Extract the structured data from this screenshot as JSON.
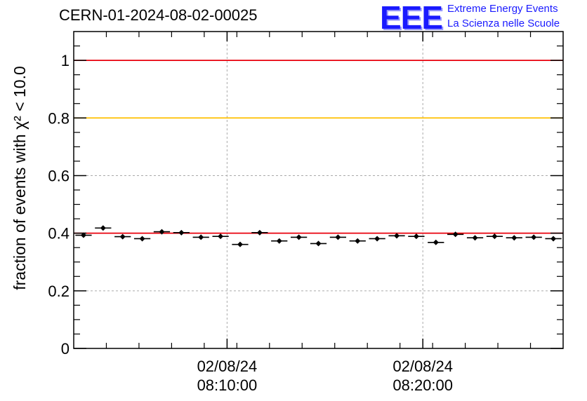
{
  "header": {
    "run_id": "CERN-01-2024-08-02-00025",
    "logo_letters": "EEE",
    "logo_line1": "Extreme Energy Events",
    "logo_line2": "La Scienza nelle Scuole"
  },
  "colors": {
    "upper_line": "#e8000b",
    "warning_line": "#ffc000",
    "lower_line": "#e8000b",
    "grid": "#aaaaaa",
    "logo": "#1a1aff"
  },
  "chart_data": {
    "type": "scatter",
    "ylabel": "fraction of events with χ² < 10.0",
    "ylim": [
      0,
      1.1
    ],
    "y_ticks": [
      "0",
      "0.2",
      "0.4",
      "0.6",
      "0.8",
      "1"
    ],
    "x_ticks": [
      {
        "date": "02/08/24",
        "time": "08:10:00"
      },
      {
        "date": "02/08/24",
        "time": "08:20:00"
      }
    ],
    "grid": true,
    "reference_lines": [
      1.0,
      0.8,
      0.4
    ],
    "points": [
      {
        "t": "08:02:40",
        "y": 0.393
      },
      {
        "t": "08:03:40",
        "y": 0.418
      },
      {
        "t": "08:04:40",
        "y": 0.388
      },
      {
        "t": "08:05:40",
        "y": 0.381
      },
      {
        "t": "08:06:40",
        "y": 0.405
      },
      {
        "t": "08:07:40",
        "y": 0.402
      },
      {
        "t": "08:08:40",
        "y": 0.386
      },
      {
        "t": "08:09:40",
        "y": 0.389
      },
      {
        "t": "08:10:40",
        "y": 0.361
      },
      {
        "t": "08:11:40",
        "y": 0.402
      },
      {
        "t": "08:12:40",
        "y": 0.373
      },
      {
        "t": "08:13:40",
        "y": 0.386
      },
      {
        "t": "08:14:40",
        "y": 0.364
      },
      {
        "t": "08:15:40",
        "y": 0.386
      },
      {
        "t": "08:16:40",
        "y": 0.373
      },
      {
        "t": "08:17:40",
        "y": 0.381
      },
      {
        "t": "08:18:40",
        "y": 0.391
      },
      {
        "t": "08:19:40",
        "y": 0.389
      },
      {
        "t": "08:20:40",
        "y": 0.368
      },
      {
        "t": "08:21:40",
        "y": 0.396
      },
      {
        "t": "08:22:40",
        "y": 0.384
      },
      {
        "t": "08:23:40",
        "y": 0.389
      },
      {
        "t": "08:24:40",
        "y": 0.384
      },
      {
        "t": "08:25:40",
        "y": 0.386
      },
      {
        "t": "08:26:40",
        "y": 0.381
      }
    ]
  }
}
